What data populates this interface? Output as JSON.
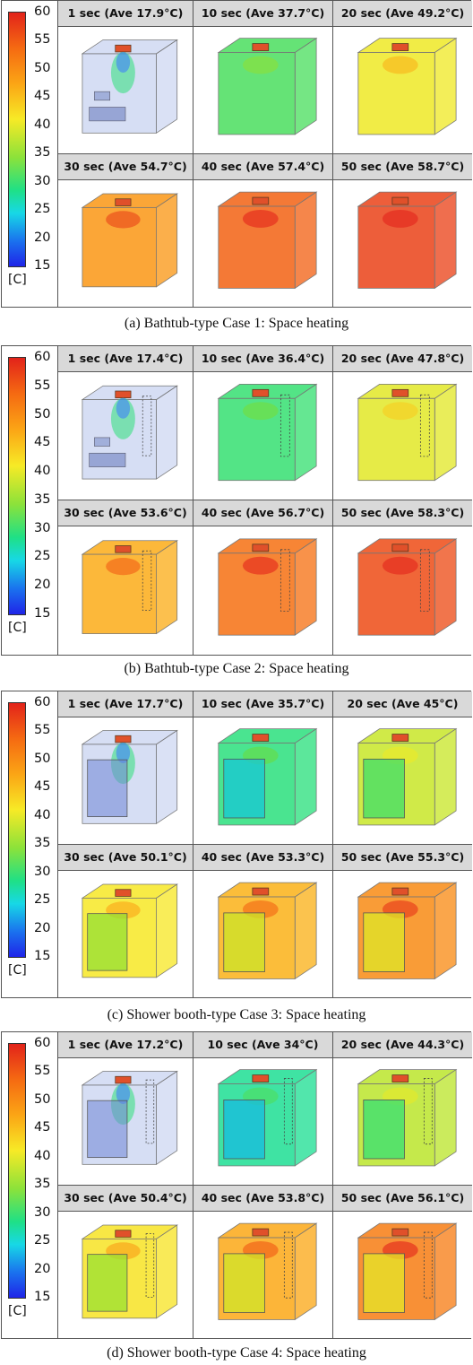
{
  "legend": {
    "ticks": [
      "60",
      "55",
      "50",
      "45",
      "40",
      "35",
      "30",
      "25",
      "20",
      "15"
    ],
    "unit": "[C]"
  },
  "panels": [
    {
      "caption": "(a) Bathtub-type Case 1: Space heating",
      "type": "bath",
      "cells": [
        {
          "label": "1 sec (Ave 17.9°C)",
          "temp": 17.9
        },
        {
          "label": "10 sec (Ave 37.7°C)",
          "temp": 37.7
        },
        {
          "label": "20 sec (Ave 49.2°C)",
          "temp": 49.2
        },
        {
          "label": "30 sec (Ave 54.7°C)",
          "temp": 54.7
        },
        {
          "label": "40 sec (Ave 57.4°C)",
          "temp": 57.4
        },
        {
          "label": "50 sec (Ave 58.7°C)",
          "temp": 58.7
        }
      ]
    },
    {
      "caption": "(b) Bathtub-type Case 2: Space heating",
      "type": "bath2",
      "cells": [
        {
          "label": "1 sec (Ave 17.4°C)",
          "temp": 17.4
        },
        {
          "label": "10 sec (Ave 36.4°C)",
          "temp": 36.4
        },
        {
          "label": "20 sec (Ave 47.8°C)",
          "temp": 47.8
        },
        {
          "label": "30 sec (Ave 53.6°C)",
          "temp": 53.6
        },
        {
          "label": "40 sec (Ave 56.7°C)",
          "temp": 56.7
        },
        {
          "label": "50 sec (Ave 58.3°C)",
          "temp": 58.3
        }
      ]
    },
    {
      "caption": "(c) Shower booth-type Case 3: Space heating",
      "type": "shower",
      "cells": [
        {
          "label": "1 sec (Ave 17.7°C)",
          "temp": 17.7
        },
        {
          "label": "10 sec (Ave 35.7°C)",
          "temp": 35.7
        },
        {
          "label": "20 sec (Ave 45°C)",
          "temp": 45
        },
        {
          "label": "30 sec (Ave 50.1°C)",
          "temp": 50.1
        },
        {
          "label": "40 sec (Ave 53.3°C)",
          "temp": 53.3
        },
        {
          "label": "50 sec (Ave 55.3°C)",
          "temp": 55.3
        }
      ]
    },
    {
      "caption": "(d) Shower booth-type Case 4: Space heating",
      "type": "shower2",
      "cells": [
        {
          "label": "1 sec (Ave 17.2°C)",
          "temp": 17.2
        },
        {
          "label": "10 sec (Ave 34°C)",
          "temp": 34
        },
        {
          "label": "20 sec (Ave 44.3°C)",
          "temp": 44.3
        },
        {
          "label": "30 sec (Ave 50.4°C)",
          "temp": 50.4
        },
        {
          "label": "40 sec (Ave 53.8°C)",
          "temp": 53.8
        },
        {
          "label": "50 sec (Ave 56.1°C)",
          "temp": 56.1
        }
      ]
    }
  ]
}
